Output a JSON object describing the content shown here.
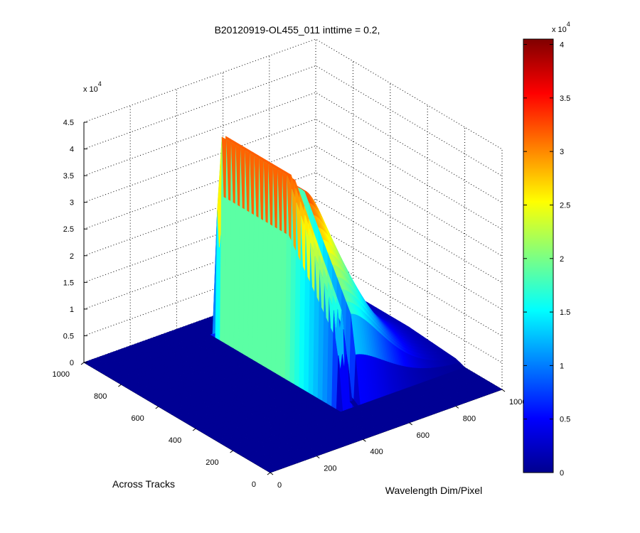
{
  "chart_data": {
    "type": "surface",
    "title": "B20120919-OL455_011 inttime = 0.2,",
    "xlabel": "Wavelength Dim/Pixel",
    "ylabel": "Across Tracks",
    "zlabel": "",
    "x_range": [
      0,
      1000
    ],
    "y_range": [
      0,
      1000
    ],
    "z_range": [
      0,
      45000
    ],
    "x_ticks": [
      "0",
      "200",
      "400",
      "600",
      "800",
      "1000"
    ],
    "y_ticks": [
      "0",
      "200",
      "400",
      "600",
      "800",
      "1000"
    ],
    "z_ticks": [
      "0",
      "0.5",
      "1",
      "1.5",
      "2",
      "2.5",
      "3",
      "3.5",
      "4",
      "4.5"
    ],
    "z_multiplier": "x 10",
    "z_multiplier_exp": "4",
    "colorbar": {
      "min": 0,
      "max": 40500,
      "ticks": [
        "0",
        "0.5",
        "1",
        "1.5",
        "2",
        "2.5",
        "3",
        "3.5",
        "4"
      ],
      "multiplier": "x 10",
      "multiplier_exp": "4",
      "colormap": "jet"
    },
    "grid": true,
    "surface": {
      "description_points": [
        {
          "wavelength_pixel": 480,
          "across_track_start": 250,
          "across_track_end": 850,
          "peak_value": 38000
        },
        {
          "wavelength_pixel": 560,
          "across_track_start": 250,
          "across_track_end": 850,
          "peak_value": 33000
        },
        {
          "wavelength_pixel": 700,
          "across_track_start": 250,
          "across_track_end": 850,
          "peak_value": 20000
        },
        {
          "wavelength_pixel": 850,
          "across_track_start": 250,
          "across_track_end": 850,
          "peak_value": 5000
        }
      ],
      "baseline_value": 0
    }
  }
}
